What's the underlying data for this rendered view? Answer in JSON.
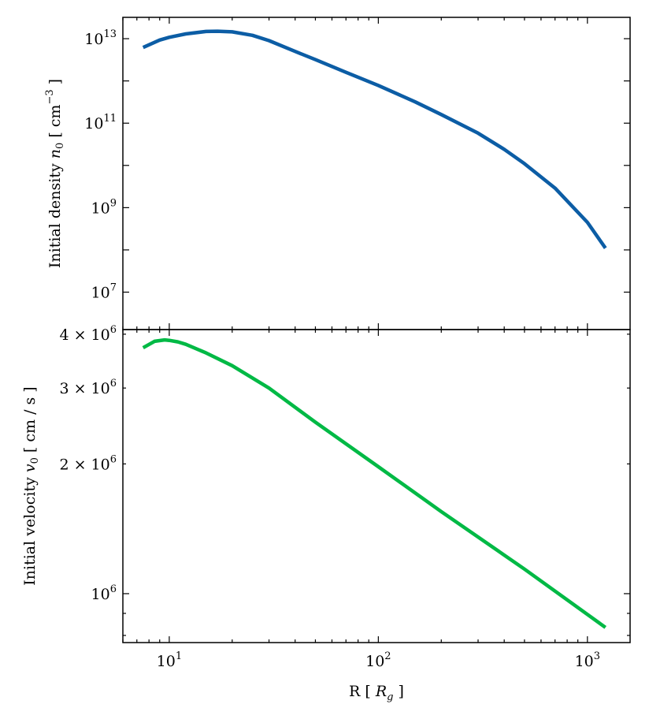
{
  "chart_data": [
    {
      "type": "line",
      "panel": "top",
      "xscale": "log",
      "yscale": "log",
      "xlim": [
        6.0,
        1600
      ],
      "ylim": [
        1300000.0,
        32000000000000.0
      ],
      "xlabel": "",
      "ylabel_parts": [
        "Initial density ",
        "n",
        "0",
        " [ cm",
        "−3",
        " ]"
      ],
      "ylabel": "Initial density n0 [ cm^-3 ]",
      "yticks": [
        {
          "value": 10000000.0,
          "base": "10",
          "exp": "7"
        },
        {
          "value": 1000000000.0,
          "base": "10",
          "exp": "9"
        },
        {
          "value": 100000000000.0,
          "base": "10",
          "exp": "11"
        },
        {
          "value": 10000000000000.0,
          "base": "10",
          "exp": "13"
        }
      ],
      "series": [
        {
          "color": "#0C5DA5",
          "x": [
            7.5,
            9,
            10,
            12,
            15,
            17,
            20,
            25,
            30,
            40,
            50,
            70,
            100,
            150,
            200,
            300,
            400,
            500,
            700,
            1000,
            1220
          ],
          "y": [
            6200000000000.0,
            9300000000000.0,
            10800000000000.0,
            13000000000000.0,
            14800000000000.0,
            15000000000000.0,
            14500000000000.0,
            12000000000000.0,
            9000000000000.0,
            5000000000000.0,
            3200000000000.0,
            1600000000000.0,
            780000000000.0,
            320000000000.0,
            160000000000.0,
            58000000000.0,
            24000000000.0,
            11000000000.0,
            2900000000.0,
            450000000.0,
            110000000.0
          ]
        }
      ]
    },
    {
      "type": "line",
      "panel": "bottom",
      "xscale": "log",
      "yscale": "log",
      "xlim": [
        6.0,
        1600
      ],
      "ylim": [
        770000.0,
        4100000.0
      ],
      "xlabel_parts": [
        "R [ ",
        "R",
        "g",
        " ]"
      ],
      "xlabel": "R [ R_g ]",
      "ylabel_parts": [
        "Initial velocity ",
        "v",
        "0",
        " [ cm / s ]"
      ],
      "ylabel": "Initial velocity v0 [ cm / s ]",
      "xticks": [
        {
          "value": 10,
          "base": "10",
          "exp": "1"
        },
        {
          "value": 100,
          "base": "10",
          "exp": "2"
        },
        {
          "value": 1000,
          "base": "10",
          "exp": "3"
        }
      ],
      "yticks": [
        {
          "value": 1000000.0,
          "base": "10",
          "exp": "6",
          "mult": ""
        },
        {
          "value": 2000000.0,
          "base": "10",
          "exp": "6",
          "mult": "2 × "
        },
        {
          "value": 3000000.0,
          "base": "10",
          "exp": "6",
          "mult": "3 × "
        },
        {
          "value": 4000000.0,
          "base": "10",
          "exp": "6",
          "mult": "4 × "
        }
      ],
      "series": [
        {
          "color": "#00B945",
          "x": [
            7.5,
            8.5,
            9.5,
            10,
            11,
            12,
            15,
            20,
            30,
            50,
            100,
            200,
            500,
            1000,
            1220
          ],
          "y": [
            3720000.0,
            3850000.0,
            3880000.0,
            3870000.0,
            3840000.0,
            3790000.0,
            3620000.0,
            3380000.0,
            3000000.0,
            2500000.0,
            1970000.0,
            1550000.0,
            1140000.0,
            895000.0,
            835000.0
          ]
        }
      ]
    }
  ]
}
